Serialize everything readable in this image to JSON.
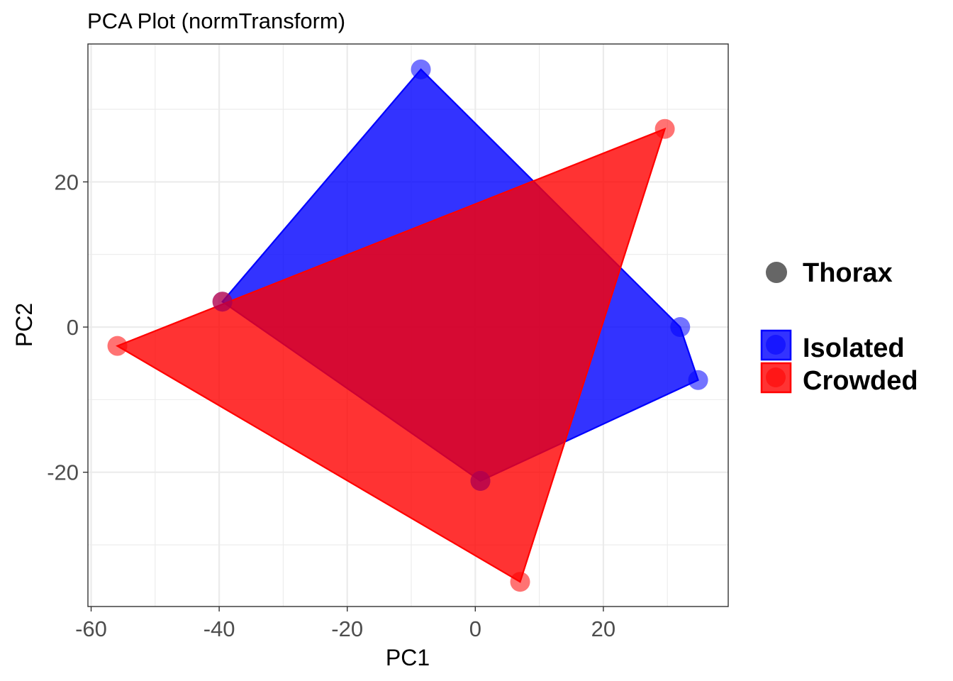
{
  "chart_data": {
    "type": "scatter",
    "title": "PCA Plot (normTransform)",
    "xlabel": "PC1",
    "ylabel": "PC2",
    "xlim": [
      -60.5,
      39.5
    ],
    "ylim": [
      -38.5,
      39.0
    ],
    "x_ticks": [
      -60,
      -40,
      -20,
      0,
      20
    ],
    "y_ticks": [
      -20,
      0,
      20
    ],
    "x_tick_labels": [
      "-60",
      "-40",
      "-20",
      "0",
      "20"
    ],
    "y_tick_labels": [
      "-20",
      "0",
      "20"
    ],
    "grid": true,
    "legend_position": "right",
    "shape_legend": {
      "label": "Thorax",
      "color": "#666666"
    },
    "series": [
      {
        "name": "Isolated",
        "color": "#0000ff",
        "points": [
          {
            "x": -8.5,
            "y": 35.5
          },
          {
            "x": -39.5,
            "y": 3.5
          },
          {
            "x": 0.8,
            "y": -21.2
          },
          {
            "x": 32.0,
            "y": 0.0
          },
          {
            "x": 34.8,
            "y": -7.3
          }
        ],
        "hull": [
          {
            "x": -8.5,
            "y": 35.5
          },
          {
            "x": 32.0,
            "y": 0.0
          },
          {
            "x": 34.8,
            "y": -7.3
          },
          {
            "x": 0.8,
            "y": -21.2
          },
          {
            "x": -39.5,
            "y": 3.5
          }
        ]
      },
      {
        "name": "Crowded",
        "color": "#ff0000",
        "points": [
          {
            "x": 29.6,
            "y": 27.3
          },
          {
            "x": -55.9,
            "y": -2.6
          },
          {
            "x": 7.0,
            "y": -35.1
          },
          {
            "x": -39.5,
            "y": 3.5
          },
          {
            "x": 0.8,
            "y": -21.2
          }
        ],
        "hull": [
          {
            "x": 29.6,
            "y": 27.3
          },
          {
            "x": 7.0,
            "y": -35.1
          },
          {
            "x": -55.9,
            "y": -2.6
          }
        ]
      }
    ]
  }
}
